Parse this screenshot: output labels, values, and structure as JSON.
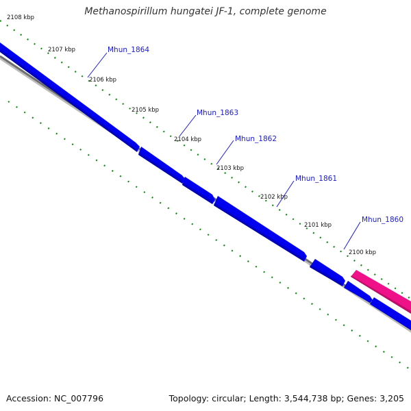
{
  "title": "Methanospirillum hungatei JF-1, complete genome",
  "footer": {
    "accession": "Accession: NC_007796",
    "summary": "Topology: circular; Length: 3,544,738 bp; Genes: 3,205"
  },
  "colors": {
    "gene_forward": "#0000ee",
    "gene_reverse": "#ee1188",
    "tick": "#118811",
    "backbone": "#777777",
    "gene_label": "#1a1acc"
  },
  "ticks": [
    {
      "label": "2108 kbp"
    },
    {
      "label": "2107 kbp"
    },
    {
      "label": "2106 kbp"
    },
    {
      "label": "2105 kbp"
    },
    {
      "label": "2104 kbp"
    },
    {
      "label": "2103 kbp"
    },
    {
      "label": "2102 kbp"
    },
    {
      "label": "2101 kbp"
    },
    {
      "label": "2100 kbp"
    }
  ],
  "genes": [
    {
      "name": "Mhun_1864",
      "strand": "minus"
    },
    {
      "name": "Mhun_1863",
      "strand": "minus"
    },
    {
      "name": "Mhun_1862",
      "strand": "minus"
    },
    {
      "name": "Mhun_1861",
      "strand": "minus"
    },
    {
      "name": "Mhun_1860",
      "strand": "minus"
    }
  ]
}
